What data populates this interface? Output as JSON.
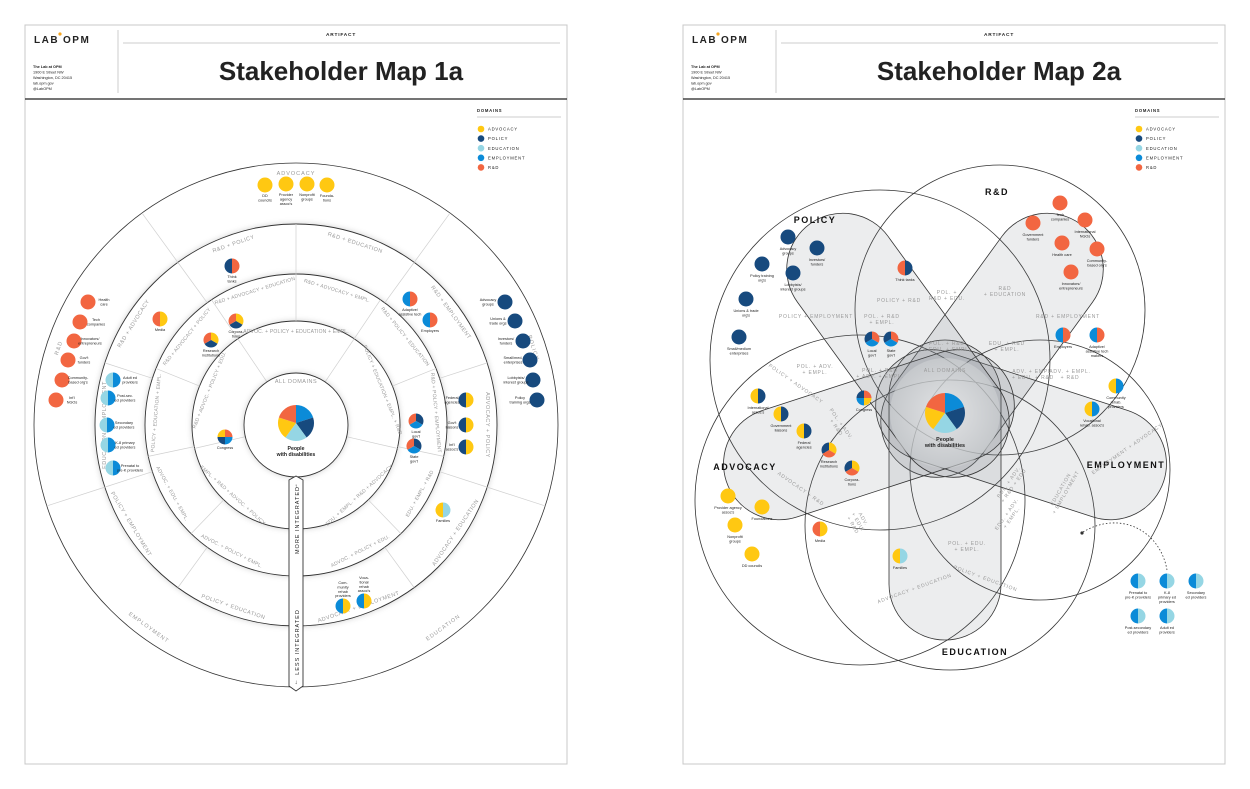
{
  "colors": {
    "advocacy": "#FFC812",
    "policy": "#174A7E",
    "education": "#95D6E4",
    "employment": "#0B8BD8",
    "rd": "#F26641"
  },
  "posters": [
    {
      "logo_left": "LAB",
      "logo_right": "OPM",
      "artifact": "ARTIFACT",
      "title": "Stakeholder Map 1a",
      "address": [
        "The Lab at OPM",
        "1900 E Street NW",
        "Washington, DC 20415",
        "lab.opm.gov",
        "@LabOPM"
      ],
      "legend_title": "DOMAINS",
      "legend": [
        "ADVOCACY",
        "POLICY",
        "EDUCATION",
        "EMPLOYMENT",
        "R&D"
      ]
    },
    {
      "logo_left": "LAB",
      "logo_right": "OPM",
      "artifact": "ARTIFACT",
      "title": "Stakeholder Map 2a",
      "address": [
        "The Lab at OPM",
        "1900 E Street NW",
        "Washington, DC 20415",
        "lab.opm.gov",
        "@LabOPM"
      ],
      "legend_title": "DOMAINS",
      "legend": [
        "ADVOCACY",
        "POLICY",
        "EDUCATION",
        "EMPLOYMENT",
        "R&D"
      ]
    }
  ],
  "map1": {
    "center_ring_label": "ALL DOMAINS",
    "center": [
      "People",
      "with disabilities"
    ],
    "axis_more": "MORE INTEGRATED",
    "axis_less": "LESS INTEGRATED",
    "ring_labels": [
      "ADVOCACY",
      "R&D",
      "POLICY",
      "EMPLOYMENT",
      "EDUCATION",
      "R&D + POLICY",
      "R&D + EDUCATION",
      "R&D + EMPLOYMENT",
      "ADVOCACY + POLICY",
      "ADVOCACY + EDUCATION",
      "ADVOCACY + EMPLOYMENT",
      "POLICY + EDUCATION",
      "POLICY + EMPLOYMENT",
      "EDUCATION + EMPLOYMENT",
      "R&D + ADVOCACY",
      "R&D + ADVOCACY + POLICY",
      "R&D + ADVOCACY + EDUCATION",
      "R&D + ADVOCACY + EMPL.",
      "R&D + POLICY + EDUCATION",
      "R&D + POLICY + EMPLOYMENT",
      "ADVOC. + POLICY + EDU.",
      "ADVOC. + POLICY + EMPL.",
      "POLICY + EDUCATION + EMPL.",
      "EDU. + EMPL. + R&D",
      "ADVOC. + EDU. + EMPL.",
      "ADVOC. + POLICY + EDUCATION + EMPL.",
      "POLICY + EDUCATION + EMPL. + R&D",
      "EDU. + EMPL. + R&D + ADVOCACY",
      "EMPL. + R&D + ADVOC. + POLICY",
      "R&D + ADVOC. + POLICY + EDU."
    ],
    "nodes": [
      {
        "label": [
          "DD",
          "councils"
        ],
        "domains": [
          "advocacy"
        ]
      },
      {
        "label": [
          "Provider",
          "agency",
          "assoc's"
        ],
        "domains": [
          "advocacy"
        ]
      },
      {
        "label": [
          "Nonprofit",
          "groups"
        ],
        "domains": [
          "advocacy"
        ]
      },
      {
        "label": [
          "Founda-",
          "tions"
        ],
        "domains": [
          "advocacy"
        ]
      },
      {
        "label": [
          "Health",
          "care"
        ],
        "domains": [
          "rd"
        ]
      },
      {
        "label": [
          "Tech",
          "companies"
        ],
        "domains": [
          "rd"
        ]
      },
      {
        "label": [
          "Innovators/",
          "entrepreneurs"
        ],
        "domains": [
          "rd"
        ]
      },
      {
        "label": [
          "Gov't",
          "funders"
        ],
        "domains": [
          "rd"
        ]
      },
      {
        "label": [
          "Community-",
          "based org's"
        ],
        "domains": [
          "rd"
        ]
      },
      {
        "label": [
          "Int'l",
          "NGOs"
        ],
        "domains": [
          "rd"
        ]
      },
      {
        "label": [
          "Advocacy",
          "groups"
        ],
        "domains": [
          "policy"
        ]
      },
      {
        "label": [
          "Unions &",
          "trade orgs"
        ],
        "domains": [
          "policy"
        ]
      },
      {
        "label": [
          "Investors/",
          "funders"
        ],
        "domains": [
          "policy"
        ]
      },
      {
        "label": [
          "Small/med.",
          "enterprises"
        ],
        "domains": [
          "policy"
        ]
      },
      {
        "label": [
          "Lobbyists/",
          "interest groups"
        ],
        "domains": [
          "policy"
        ]
      },
      {
        "label": [
          "Policy",
          "training orgs"
        ],
        "domains": [
          "policy"
        ]
      },
      {
        "label": [
          "Adult ed",
          "providers"
        ],
        "domains": [
          "employment",
          "education"
        ]
      },
      {
        "label": [
          "Post-sec.",
          "ed providers"
        ],
        "domains": [
          "employment",
          "education"
        ]
      },
      {
        "label": [
          "Secondary",
          "ed providers"
        ],
        "domains": [
          "employment",
          "education"
        ]
      },
      {
        "label": [
          "K-8 primary",
          "ed providers"
        ],
        "domains": [
          "employment",
          "education"
        ]
      },
      {
        "label": [
          "Prenatal to",
          "pre-K providers"
        ],
        "domains": [
          "employment",
          "education"
        ]
      },
      {
        "label": [
          "Media"
        ],
        "domains": [
          "advocacy",
          "rd"
        ]
      },
      {
        "label": [
          "Think",
          "tanks"
        ],
        "domains": [
          "rd",
          "policy"
        ]
      },
      {
        "label": [
          "Adaptive/",
          "assistive tech"
        ],
        "domains": [
          "rd",
          "employment"
        ]
      },
      {
        "label": [
          "Employers"
        ],
        "domains": [
          "rd",
          "employment"
        ]
      },
      {
        "label": [
          "Federal",
          "agencies"
        ],
        "domains": [
          "advocacy",
          "policy"
        ]
      },
      {
        "label": [
          "Gov't",
          "liaisons"
        ],
        "domains": [
          "advocacy",
          "policy"
        ]
      },
      {
        "label": [
          "Int'l",
          "assoc's"
        ],
        "domains": [
          "advocacy",
          "policy"
        ]
      },
      {
        "label": [
          "Corpora-",
          "tions"
        ],
        "domains": [
          "advocacy",
          "policy",
          "rd"
        ]
      },
      {
        "label": [
          "Research",
          "institutions"
        ],
        "domains": [
          "advocacy",
          "policy",
          "rd"
        ]
      },
      {
        "label": [
          "Local",
          "gov't"
        ],
        "domains": [
          "policy",
          "employment",
          "rd"
        ]
      },
      {
        "label": [
          "State",
          "gov't"
        ],
        "domains": [
          "policy",
          "employment",
          "rd"
        ]
      },
      {
        "label": [
          "Congress"
        ],
        "domains": [
          "rd",
          "employment",
          "policy",
          "advocacy"
        ]
      },
      {
        "label": [
          "Families"
        ],
        "domains": [
          "education",
          "advocacy"
        ]
      },
      {
        "label": [
          "Com-",
          "munity",
          "rehab",
          "providers"
        ],
        "domains": [
          "advocacy",
          "employment"
        ]
      },
      {
        "label": [
          "Voca-",
          "tional",
          "rehab",
          "assoc's"
        ],
        "domains": [
          "advocacy",
          "employment"
        ]
      }
    ]
  },
  "map2": {
    "domain_titles": [
      "POLICY",
      "R&D",
      "EMPLOYMENT",
      "EDUCATION",
      "ADVOCACY"
    ],
    "center": [
      "People",
      "with disabilities"
    ],
    "center_label": "ALL DOMAINS",
    "regions": [
      [
        "POLICY + R&D"
      ],
      [
        "POL. +",
        "R&D + EDU."
      ],
      [
        "R&D",
        "+ EDUCATION"
      ],
      [
        "POLICY + EMPLOYMENT"
      ],
      [
        "POL. + R&D",
        "+ EMPL."
      ],
      [
        "POL. + R&D",
        "+ EDU. + EMPL."
      ],
      [
        "EDU. + R&D",
        "+ EMPL."
      ],
      [
        "R&D + EMPLOYMENT"
      ],
      [
        "POL. + ADV.",
        "+ EMPL."
      ],
      [
        "POL. + R&D",
        "+ ADV. + EMPL."
      ],
      [
        "ADV. + EMPL.",
        "+ EDU. + R&D"
      ],
      [
        "ADV. + EMPL.",
        "+ R&D"
      ],
      [
        "POLICY + ADVOCACY"
      ],
      [
        "POL. + ADV.",
        "+ R&D"
      ],
      [
        "ADVOCACY + R&D"
      ],
      [
        "POL. + ADV.",
        "+ R&D + EDU"
      ],
      [
        "ADV.",
        "+ EDU.",
        "+ R&D"
      ],
      [
        "EMPLOYMENT + ADVOCACY"
      ],
      [
        "EDU. + ADV.",
        "+ EMPL."
      ],
      [
        "EDUCATION",
        "+ EMPLOYMENT"
      ],
      [
        "ADVOCACY + EDUCATION"
      ],
      [
        "POLICY + EDUCATION"
      ],
      [
        "POL. + EDU.",
        "+ EMPL."
      ]
    ],
    "nodes": [
      {
        "label": [
          "Advocacy",
          "groups"
        ],
        "domains": [
          "policy"
        ]
      },
      {
        "label": [
          "Investors/",
          "funders"
        ],
        "domains": [
          "policy"
        ]
      },
      {
        "label": [
          "Policy training",
          "org's"
        ],
        "domains": [
          "policy"
        ]
      },
      {
        "label": [
          "Lobbyists/",
          "interest groups"
        ],
        "domains": [
          "policy"
        ]
      },
      {
        "label": [
          "Unions & trade",
          "org's"
        ],
        "domains": [
          "policy"
        ]
      },
      {
        "label": [
          "Small/medium",
          "enterprises"
        ],
        "domains": [
          "policy"
        ]
      },
      {
        "label": [
          "Tech",
          "companies"
        ],
        "domains": [
          "rd"
        ]
      },
      {
        "label": [
          "Government",
          "funders"
        ],
        "domains": [
          "rd"
        ]
      },
      {
        "label": [
          "International",
          "NGOs"
        ],
        "domains": [
          "rd"
        ]
      },
      {
        "label": [
          "Health care"
        ],
        "domains": [
          "rd"
        ]
      },
      {
        "label": [
          "Community-",
          "based org's"
        ],
        "domains": [
          "rd"
        ]
      },
      {
        "label": [
          "Innovators/",
          "entrepreneurs"
        ],
        "domains": [
          "rd"
        ]
      },
      {
        "label": [
          "Think tanks"
        ],
        "domains": [
          "policy",
          "rd"
        ]
      },
      {
        "label": [
          "Local",
          "gov't"
        ],
        "domains": [
          "rd",
          "employment",
          "policy"
        ]
      },
      {
        "label": [
          "State",
          "gov't"
        ],
        "domains": [
          "rd",
          "employment",
          "policy"
        ]
      },
      {
        "label": [
          "Employers"
        ],
        "domains": [
          "rd",
          "employment"
        ]
      },
      {
        "label": [
          "Adaptive/",
          "assistive tech",
          "makers"
        ],
        "domains": [
          "rd",
          "employment"
        ]
      },
      {
        "label": [
          "Congress"
        ],
        "domains": [
          "rd",
          "advocacy",
          "employment",
          "policy"
        ]
      },
      {
        "label": [
          "International",
          "assoc's"
        ],
        "domains": [
          "policy",
          "advocacy"
        ]
      },
      {
        "label": [
          "Government",
          "liaisons"
        ],
        "domains": [
          "policy",
          "advocacy"
        ]
      },
      {
        "label": [
          "Federal",
          "agencies"
        ],
        "domains": [
          "policy",
          "advocacy"
        ]
      },
      {
        "label": [
          "Research",
          "institutions"
        ],
        "domains": [
          "advocacy",
          "rd",
          "policy"
        ]
      },
      {
        "label": [
          "Corpora-",
          "tions"
        ],
        "domains": [
          "advocacy",
          "rd",
          "policy"
        ]
      },
      {
        "label": [
          "Community",
          "rehab.",
          "providers"
        ],
        "domains": [
          "employment",
          "advocacy"
        ]
      },
      {
        "label": [
          "Vocational",
          "rehab. assoc's"
        ],
        "domains": [
          "employment",
          "advocacy"
        ]
      },
      {
        "label": [
          "Provider agency",
          "assoc's"
        ],
        "domains": [
          "advocacy"
        ]
      },
      {
        "label": [
          "Foundations"
        ],
        "domains": [
          "advocacy"
        ]
      },
      {
        "label": [
          "Nonprofit",
          "groups"
        ],
        "domains": [
          "advocacy"
        ]
      },
      {
        "label": [
          "DD councils"
        ],
        "domains": [
          "advocacy"
        ]
      },
      {
        "label": [
          "Media"
        ],
        "domains": [
          "advocacy",
          "rd"
        ]
      },
      {
        "label": [
          "Families"
        ],
        "domains": [
          "education",
          "advocacy"
        ]
      },
      {
        "label": [
          "Prenatal to",
          "pre-K providers"
        ],
        "domains": [
          "education",
          "employment"
        ]
      },
      {
        "label": [
          "K-8",
          "primary ed",
          "providers"
        ],
        "domains": [
          "education",
          "employment"
        ]
      },
      {
        "label": [
          "Secondary",
          "ed providers"
        ],
        "domains": [
          "education",
          "employment"
        ]
      },
      {
        "label": [
          "Post-secondary",
          "ed providers"
        ],
        "domains": [
          "education",
          "employment"
        ]
      },
      {
        "label": [
          "Adult ed",
          "providers"
        ],
        "domains": [
          "education",
          "employment"
        ]
      }
    ]
  }
}
